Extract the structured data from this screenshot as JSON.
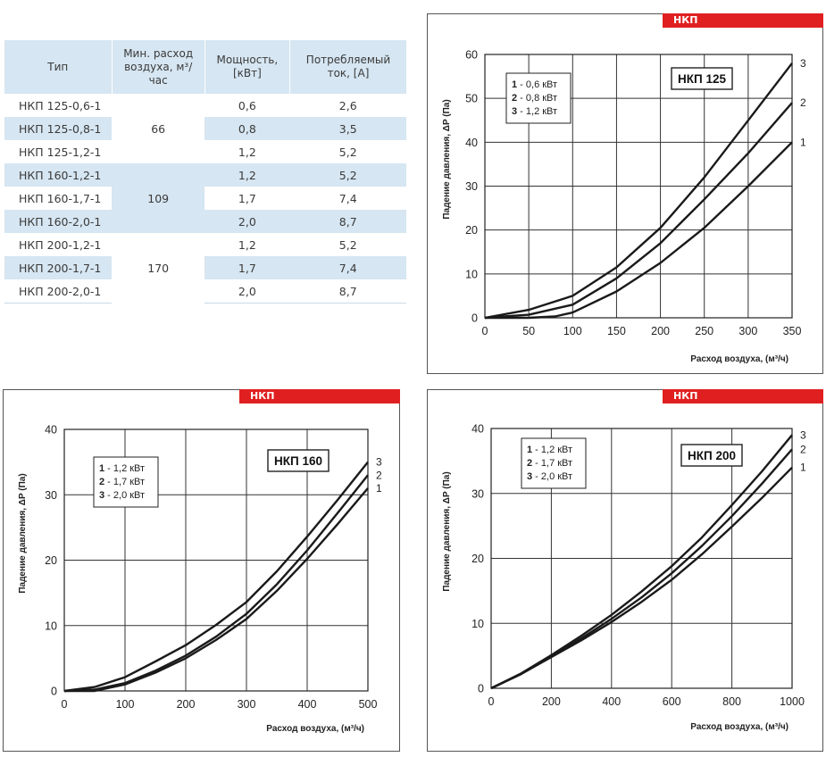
{
  "table": {
    "headers": [
      "Тип",
      "Мин. расход воздуха, м³/час",
      "Мощность, [кВт]",
      "Потребляемый ток, [А]"
    ],
    "groups": [
      {
        "min_flow": "66",
        "rows": [
          {
            "type": "НКП 125-0,6-1",
            "power": "0,6",
            "current": "2,6"
          },
          {
            "type": "НКП 125-0,8-1",
            "power": "0,8",
            "current": "3,5"
          },
          {
            "type": "НКП 125-1,2-1",
            "power": "1,2",
            "current": "5,2"
          }
        ]
      },
      {
        "min_flow": "109",
        "rows": [
          {
            "type": "НКП 160-1,2-1",
            "power": "1,2",
            "current": "5,2"
          },
          {
            "type": "НКП 160-1,7-1",
            "power": "1,7",
            "current": "7,4"
          },
          {
            "type": "НКП 160-2,0-1",
            "power": "2,0",
            "current": "8,7"
          }
        ]
      },
      {
        "min_flow": "170",
        "rows": [
          {
            "type": "НКП 200-1,2-1",
            "power": "1,2",
            "current": "5,2"
          },
          {
            "type": "НКП 200-1,7-1",
            "power": "1,7",
            "current": "7,4"
          },
          {
            "type": "НКП 200-2,0-1",
            "power": "2,0",
            "current": "8,7"
          }
        ]
      }
    ]
  },
  "chart_data": [
    {
      "type": "line",
      "badge": "НКП",
      "title": "НКП 125",
      "xlabel": "Расход воздуха, (м³/ч)",
      "ylabel": "Падение давления, ΔP (Па)",
      "xlim": [
        0,
        350
      ],
      "ylim": [
        0,
        60
      ],
      "xticks": [
        0,
        50,
        100,
        150,
        200,
        250,
        300,
        350
      ],
      "yticks": [
        0,
        10,
        20,
        30,
        40,
        50,
        60
      ],
      "grid": true,
      "legend": [
        "1 - 0,6 кВт",
        "2 - 0,8 кВт",
        "3 - 1,2 кВт"
      ],
      "series": [
        {
          "name": "1",
          "x": [
            0,
            50,
            80,
            100,
            150,
            200,
            250,
            300,
            350
          ],
          "y": [
            0,
            0,
            0.3,
            1.2,
            6,
            12.5,
            20.5,
            30,
            40
          ]
        },
        {
          "name": "2",
          "x": [
            0,
            50,
            100,
            150,
            200,
            250,
            300,
            350
          ],
          "y": [
            0,
            0.7,
            3,
            9,
            17,
            27,
            37.5,
            49
          ]
        },
        {
          "name": "3",
          "x": [
            0,
            50,
            100,
            150,
            200,
            250,
            300,
            350
          ],
          "y": [
            0,
            1.8,
            5,
            11.5,
            20.5,
            32,
            45,
            58
          ]
        }
      ]
    },
    {
      "type": "line",
      "badge": "НКП",
      "title": "НКП 160",
      "xlabel": "Расход воздуха, (м³/ч)",
      "ylabel": "Падение давления, ΔP (Па)",
      "xlim": [
        0,
        500
      ],
      "ylim": [
        0,
        40
      ],
      "xticks": [
        0,
        100,
        200,
        300,
        400,
        500
      ],
      "yticks": [
        0,
        10,
        20,
        30,
        40
      ],
      "grid": true,
      "legend": [
        "1 - 1,2 кВт",
        "2 - 1,7 кВт",
        "3 - 2,0 кВт"
      ],
      "series": [
        {
          "name": "1",
          "x": [
            0,
            50,
            100,
            150,
            200,
            250,
            300,
            350,
            400,
            450,
            500
          ],
          "y": [
            0,
            0,
            1,
            2.8,
            5,
            7.8,
            11,
            15.3,
            20.2,
            25.5,
            31
          ]
        },
        {
          "name": "2",
          "x": [
            0,
            50,
            100,
            150,
            200,
            250,
            300,
            350,
            400,
            450,
            500
          ],
          "y": [
            0,
            0.2,
            1.2,
            3.1,
            5.4,
            8.3,
            11.8,
            16.3,
            21.5,
            27.2,
            33
          ]
        },
        {
          "name": "3",
          "x": [
            0,
            50,
            100,
            150,
            200,
            250,
            300,
            350,
            400,
            450,
            500
          ],
          "y": [
            0,
            0.6,
            2.1,
            4.5,
            7,
            10.1,
            13.6,
            18.3,
            23.6,
            29.2,
            35
          ]
        }
      ]
    },
    {
      "type": "line",
      "badge": "НКП",
      "title": "НКП 200",
      "xlabel": "Расход воздуха, (м³/ч)",
      "ylabel": "Падение давления, ΔP (Па)",
      "xlim": [
        0,
        1000
      ],
      "ylim": [
        0,
        40
      ],
      "xticks": [
        0,
        200,
        400,
        600,
        800,
        1000
      ],
      "yticks": [
        0,
        10,
        20,
        30,
        40
      ],
      "grid": true,
      "legend": [
        "1 - 1,2 кВт",
        "2 - 1,7 кВт",
        "3 - 2,0 кВт"
      ],
      "series": [
        {
          "name": "1",
          "x": [
            0,
            100,
            200,
            300,
            400,
            500,
            600,
            700,
            800,
            900,
            1000
          ],
          "y": [
            0,
            2.2,
            4.8,
            7.4,
            10.2,
            13.3,
            16.7,
            20.6,
            24.9,
            29.3,
            34
          ]
        },
        {
          "name": "2",
          "x": [
            0,
            100,
            200,
            300,
            400,
            500,
            600,
            700,
            800,
            900,
            1000
          ],
          "y": [
            0,
            2.2,
            4.9,
            7.7,
            10.7,
            14,
            17.7,
            21.9,
            26.5,
            31.5,
            36.8
          ]
        },
        {
          "name": "3",
          "x": [
            0,
            100,
            200,
            300,
            400,
            500,
            600,
            700,
            800,
            900,
            1000
          ],
          "y": [
            0,
            2.3,
            5.1,
            8.1,
            11.3,
            14.9,
            18.8,
            23.2,
            28.2,
            33.4,
            39
          ]
        }
      ]
    }
  ]
}
